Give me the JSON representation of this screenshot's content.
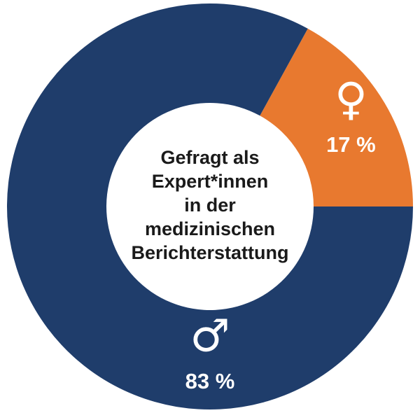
{
  "chart_data": {
    "type": "donut",
    "title": [
      "Gefragt als",
      "Expert*innen",
      "in der",
      "medizinischen",
      "Berichterstattung"
    ],
    "categories": [
      "♀",
      "♂"
    ],
    "values": [
      17,
      83
    ],
    "value_labels": [
      "17 %",
      "83 %"
    ],
    "colors": [
      "#e8792f",
      "#1f3d6b"
    ]
  }
}
